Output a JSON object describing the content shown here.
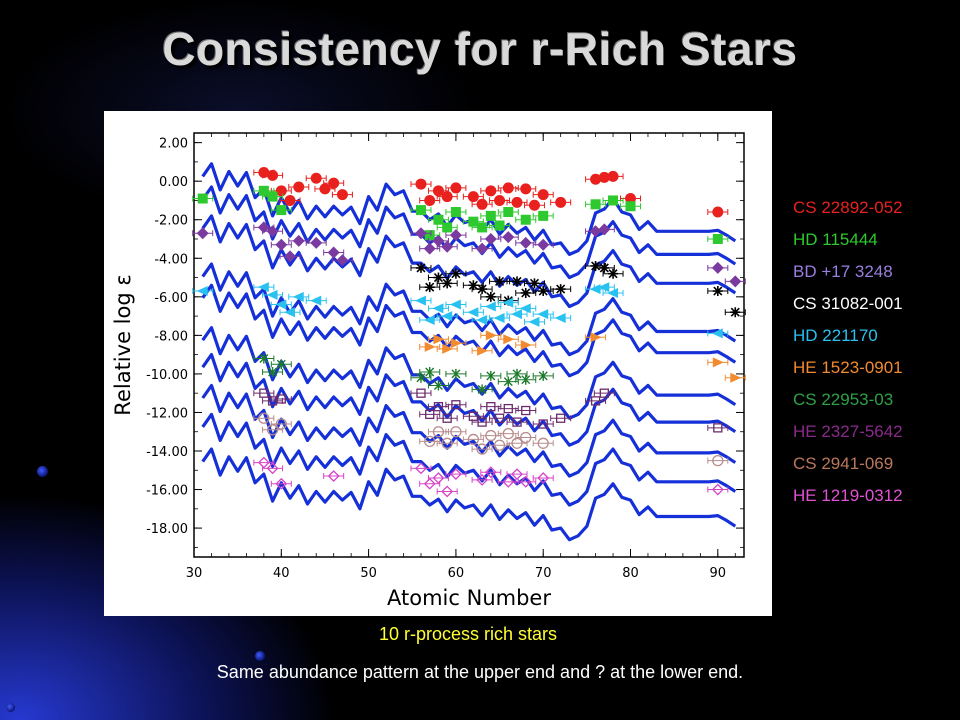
{
  "slide": {
    "title": "Consistency for r-Rich Stars",
    "caption_stars": "10 r-process rich stars",
    "caption_note": "Same abundance pattern at the upper end and ? at the lower end."
  },
  "chart_data": {
    "type": "scatter",
    "xlabel": "Atomic Number",
    "ylabel": "Relative log ε",
    "xlim": [
      30,
      93
    ],
    "ylim": [
      -19.5,
      2.5
    ],
    "xticks": [
      "30",
      "40",
      "50",
      "60",
      "70",
      "80",
      "90"
    ],
    "yticks": [
      "2.00",
      "0.00",
      "-2.00",
      "-4.00",
      "-6.00",
      "-8.00",
      "-10.00",
      "-12.00",
      "-14.00",
      "-16.00",
      "-18.00"
    ],
    "grid": false,
    "legend_position": "right, outside plot",
    "scaled_solar_r_pattern": {
      "Z": [
        31,
        32,
        33,
        34,
        35,
        36,
        37,
        38,
        39,
        40,
        41,
        42,
        43,
        44,
        45,
        46,
        47,
        48,
        49,
        50,
        51,
        52,
        53,
        54,
        55,
        56,
        57,
        58,
        59,
        60,
        61,
        62,
        63,
        64,
        65,
        66,
        67,
        68,
        69,
        70,
        71,
        72,
        73,
        74,
        75,
        76,
        77,
        78,
        79,
        80,
        81,
        82,
        83,
        84,
        85,
        86,
        87,
        88,
        89,
        90,
        91,
        92
      ],
      "base_log_eps": [
        1.25,
        1.9,
        0.55,
        1.5,
        0.75,
        1.45,
        0.15,
        0.6,
        -0.8,
        0.15,
        -0.65,
        0.0,
        -0.95,
        -0.3,
        -0.85,
        -0.3,
        -0.75,
        -0.35,
        -1.2,
        0.2,
        -0.5,
        0.85,
        0.3,
        0.5,
        -0.55,
        -0.55,
        -1.0,
        -0.7,
        -1.35,
        -0.75,
        -1.15,
        -1.0,
        -1.55,
        -1.0,
        -1.75,
        -1.25,
        -1.7,
        -1.4,
        -2.05,
        -1.55,
        -2.3,
        -2.2,
        -2.8,
        -2.6,
        -2.1,
        -0.65,
        -0.45,
        0.1,
        -0.6,
        -0.75,
        -1.5,
        -1.1,
        -1.6,
        -1.6,
        -1.6,
        -1.6,
        -1.6,
        -1.6,
        -1.6,
        -1.55,
        -1.8,
        -2.1
      ],
      "star_offsets": [
        -1.0,
        -2.2,
        -3.7,
        -6.2,
        -7.3,
        -9.5,
        -10.9,
        -12.5,
        -14.0,
        -15.8
      ]
    },
    "series": [
      {
        "name": "CS 22892-052",
        "color": "#e8211e",
        "marker": "filled-circle",
        "x": [
          38,
          39,
          40,
          41,
          42,
          44,
          45,
          46,
          47,
          56,
          57,
          58,
          59,
          60,
          62,
          63,
          64,
          65,
          66,
          67,
          68,
          69,
          70,
          72,
          76,
          77,
          78,
          80,
          90
        ],
        "y": [
          0.45,
          0.3,
          -0.5,
          -1.0,
          -0.3,
          0.15,
          -0.4,
          -0.1,
          -0.7,
          -0.15,
          -1.0,
          -0.5,
          -0.8,
          -0.35,
          -0.8,
          -1.2,
          -0.5,
          -1.0,
          -0.35,
          -1.1,
          -0.4,
          -1.25,
          -0.7,
          -1.1,
          0.1,
          0.2,
          0.25,
          -0.9,
          -1.6
        ]
      },
      {
        "name": "HD 115444",
        "color": "#2ec92e",
        "marker": "filled-square",
        "x": [
          31,
          38,
          39,
          40,
          56,
          57,
          58,
          59,
          60,
          62,
          63,
          64,
          65,
          66,
          68,
          70,
          76,
          78,
          80,
          90
        ],
        "y": [
          -0.9,
          -0.5,
          -0.8,
          -1.5,
          -1.5,
          -2.8,
          -2.0,
          -2.4,
          -1.6,
          -2.1,
          -2.4,
          -1.8,
          -2.3,
          -1.6,
          -2.0,
          -1.8,
          -1.2,
          -1.0,
          -1.3,
          -3.0
        ]
      },
      {
        "name": "BD +17 3248",
        "color": "#7a3aa0",
        "marker": "filled-diamond",
        "x": [
          31,
          38,
          39,
          40,
          41,
          42,
          44,
          46,
          47,
          56,
          57,
          58,
          59,
          60,
          63,
          64,
          66,
          68,
          70,
          76,
          77,
          90,
          92
        ],
        "y": [
          -2.7,
          -2.4,
          -2.6,
          -3.3,
          -3.9,
          -3.1,
          -3.2,
          -3.7,
          -4.1,
          -2.7,
          -3.5,
          -3.1,
          -3.4,
          -2.8,
          -3.5,
          -3.0,
          -2.9,
          -3.2,
          -3.3,
          -2.6,
          -2.5,
          -4.5,
          -5.2
        ]
      },
      {
        "name": "CS 31082-001",
        "color": "#000000",
        "marker": "star",
        "x": [
          56,
          57,
          58,
          59,
          60,
          62,
          63,
          64,
          65,
          66,
          67,
          68,
          69,
          70,
          72,
          76,
          77,
          78,
          90,
          92
        ],
        "y": [
          -4.5,
          -5.5,
          -5.0,
          -5.3,
          -4.8,
          -5.4,
          -5.6,
          -6.0,
          -5.2,
          -6.2,
          -5.2,
          -5.8,
          -5.3,
          -5.7,
          -5.6,
          -4.4,
          -4.5,
          -4.8,
          -5.7,
          -6.8
        ]
      },
      {
        "name": "HD 221170",
        "color": "#29c2f0",
        "marker": "left-triangle",
        "x": [
          31,
          38,
          39,
          40,
          41,
          42,
          44,
          56,
          57,
          58,
          59,
          60,
          62,
          63,
          64,
          65,
          66,
          67,
          68,
          69,
          70,
          72,
          76,
          77,
          78,
          90
        ],
        "y": [
          -5.7,
          -5.5,
          -5.9,
          -6.4,
          -6.8,
          -6.0,
          -6.2,
          -6.2,
          -7.2,
          -6.6,
          -7.0,
          -6.4,
          -6.8,
          -7.2,
          -6.5,
          -7.1,
          -6.3,
          -6.9,
          -6.6,
          -7.3,
          -6.9,
          -7.1,
          -5.6,
          -5.5,
          -5.8,
          -7.9
        ]
      },
      {
        "name": "HE 1523-0901",
        "color": "#f28a30",
        "marker": "right-triangle",
        "x": [
          57,
          58,
          59,
          60,
          63,
          64,
          66,
          68,
          76,
          90,
          92
        ],
        "y": [
          -8.6,
          -8.2,
          -8.7,
          -8.4,
          -8.8,
          -8.0,
          -8.2,
          -8.5,
          -8.1,
          -9.4,
          -10.2
        ]
      },
      {
        "name": "CS 22953-03",
        "color": "#1d7a2a",
        "marker": "x-cross",
        "x": [
          38,
          39,
          40,
          56,
          57,
          58,
          60,
          63,
          64,
          66,
          67,
          68,
          70
        ],
        "y": [
          -9.2,
          -9.9,
          -9.5,
          -10.2,
          -9.9,
          -10.6,
          -10.0,
          -10.8,
          -10.1,
          -10.4,
          -10.0,
          -10.3,
          -10.1
        ]
      },
      {
        "name": "HE 2327-5642",
        "color": "#6b2a6b",
        "marker": "open-square",
        "x": [
          38,
          39,
          40,
          56,
          57,
          58,
          59,
          60,
          62,
          63,
          64,
          65,
          66,
          67,
          68,
          70,
          72,
          76,
          77,
          90
        ],
        "y": [
          -11.0,
          -11.4,
          -11.3,
          -11.0,
          -12.1,
          -11.7,
          -12.3,
          -11.6,
          -12.2,
          -12.5,
          -11.7,
          -12.3,
          -11.8,
          -12.5,
          -11.9,
          -12.6,
          -12.3,
          -11.4,
          -11.0,
          -12.8
        ]
      },
      {
        "name": "CS 2941-069",
        "color": "#b88c8c",
        "marker": "open-circle",
        "x": [
          38,
          39,
          40,
          57,
          58,
          59,
          60,
          62,
          63,
          64,
          65,
          66,
          67,
          68,
          70,
          90
        ],
        "y": [
          -12.3,
          -12.9,
          -12.6,
          -13.5,
          -13.0,
          -13.6,
          -13.0,
          -13.4,
          -13.9,
          -13.2,
          -13.7,
          -13.1,
          -13.6,
          -13.3,
          -13.6,
          -14.5
        ]
      },
      {
        "name": "HE 1219-0312",
        "color": "#d644c8",
        "marker": "open-diamond",
        "x": [
          38,
          39,
          40,
          46,
          56,
          57,
          58,
          59,
          60,
          63,
          64,
          66,
          67,
          68,
          70,
          90
        ],
        "y": [
          -14.6,
          -14.9,
          -15.7,
          -15.3,
          -14.9,
          -15.7,
          -15.4,
          -16.1,
          -15.2,
          -15.5,
          -15.1,
          -15.6,
          -15.2,
          -15.6,
          -15.4,
          -16.0
        ]
      }
    ]
  }
}
